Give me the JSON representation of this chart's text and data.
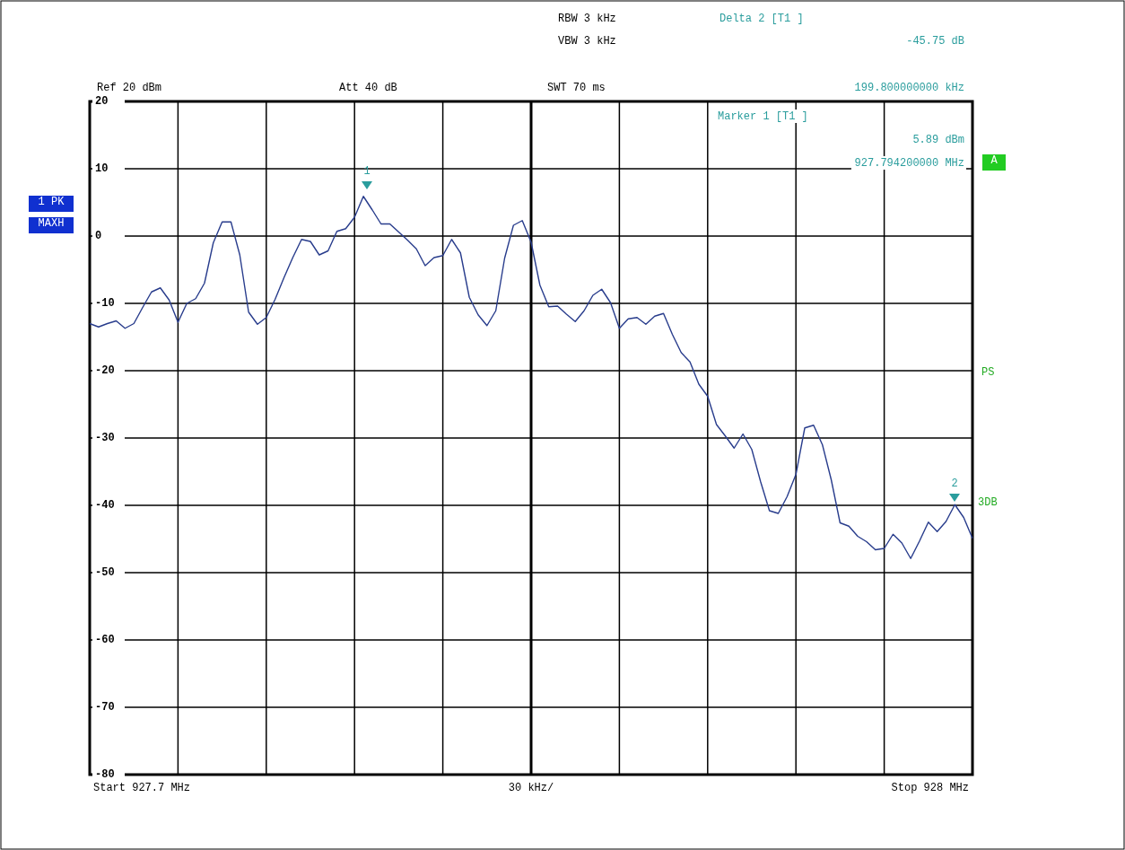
{
  "chart_data": {
    "type": "line",
    "grid": true,
    "ylim": [
      -80,
      20
    ],
    "yticks": [
      20,
      10,
      0,
      -10,
      -20,
      -30,
      -40,
      -50,
      -60,
      -70,
      -80
    ],
    "categories": [
      null,
      null,
      null,
      null,
      null,
      null,
      null,
      null,
      null,
      null,
      null,
      null,
      null,
      null,
      null,
      null,
      null,
      null,
      null,
      null,
      null,
      null,
      null,
      null,
      null,
      null,
      null,
      null,
      null,
      null,
      null,
      null,
      null,
      null,
      null,
      null,
      null,
      null,
      null,
      null,
      null,
      null,
      null,
      null,
      null,
      null,
      null,
      null,
      null,
      null,
      null,
      null,
      null,
      null,
      null,
      null,
      null,
      null,
      null,
      null,
      null,
      null,
      null,
      null,
      null,
      null,
      null,
      null,
      null,
      null,
      null,
      null,
      null,
      null,
      null,
      null,
      null,
      null,
      null,
      null,
      null,
      null,
      null,
      null,
      null,
      null,
      null,
      null,
      null,
      null,
      null,
      null,
      null,
      null,
      null,
      null,
      null,
      null,
      null,
      null,
      null
    ],
    "series": [
      {
        "color": "#283c8c",
        "values": [
          -13.0,
          -13.5,
          -13.0,
          -12.6,
          -13.7,
          -13.0,
          -10.6,
          -8.3,
          -7.7,
          -9.5,
          -12.8,
          -10.0,
          -9.3,
          -7.0,
          -1.0,
          2.1,
          2.1,
          -2.8,
          -11.3,
          -13.1,
          -12.1,
          -9.4,
          -6.2,
          -3.2,
          -0.5,
          -0.8,
          -2.8,
          -2.2,
          0.7,
          1.1,
          2.8,
          5.9,
          3.9,
          1.8,
          1.8,
          0.6,
          -0.6,
          -1.9,
          -4.4,
          -3.2,
          -2.9,
          -0.5,
          -2.5,
          -9.1,
          -11.7,
          -13.3,
          -11.1,
          -3.3,
          1.6,
          2.3,
          -0.9,
          -7.3,
          -10.5,
          -10.4,
          -11.6,
          -12.7,
          -11.1,
          -8.8,
          -7.9,
          -9.9,
          -13.7,
          -12.3,
          -12.1,
          -13.1,
          -11.9,
          -11.5,
          -14.6,
          -17.3,
          -18.7,
          -22.0,
          -23.8,
          -28.0,
          -29.7,
          -31.5,
          -29.4,
          -31.7,
          -36.5,
          -40.8,
          -41.2,
          -38.7,
          -35.4,
          -28.5,
          -28.1,
          -31.0,
          -36.2,
          -42.6,
          -43.1,
          -44.6,
          -45.4,
          -46.6,
          -46.4,
          -44.3,
          -45.6,
          -47.9,
          -45.3,
          -42.5,
          -43.9,
          -42.4,
          -39.9,
          -41.8,
          -44.9
        ]
      }
    ],
    "annotations": [
      "Ref 20 dBm",
      "Att 40 dB",
      "RBW 3 kHz",
      "VBW 3 kHz",
      "SWT 70 ms",
      "Delta 2 [T1 ]",
      "-45.75 dB",
      "199.800000000 kHz",
      "Marker 1 [T1 ]",
      "5.89 dBm",
      "927.794200000 MHz",
      "1 PK",
      "MAXH",
      "A",
      "PS",
      "3DB",
      "30 kHz/",
      "Start 927.7 MHz",
      "Stop 928 MHz",
      "1",
      "2"
    ]
  }
}
